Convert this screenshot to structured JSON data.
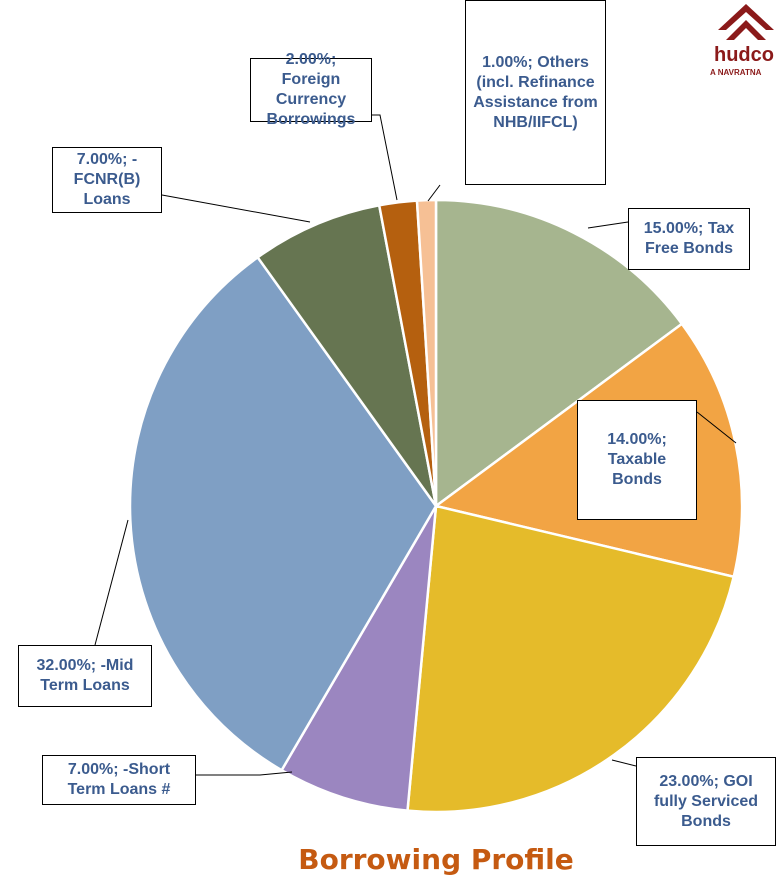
{
  "chart_data": {
    "type": "pie",
    "title": "Borrowing Profile",
    "values": [
      15,
      14,
      23,
      7,
      32,
      7,
      2,
      1
    ],
    "value_labels": [
      "15.00%; Tax Free Bonds",
      "14.00%; Taxable Bonds",
      "23.00%; GOI fully Serviced Bonds",
      "7.00%; -Short Term Loans #",
      "32.00%; -Mid Term Loans",
      "7.00%; -FCNR(B) Loans",
      "2.00%; Foreign Currency Borrowings",
      "1.00%; Others (incl. Refinance Assistance from NHB/IIFCL)"
    ],
    "colors": [
      "#a6b58f",
      "#f2a444",
      "#e5bb2a",
      "#9b86c0",
      "#7f9fc4",
      "#667551",
      "#b5600f",
      "#f6c095"
    ]
  },
  "logo": {
    "text": "hudco",
    "tagline": "A NAVRATNA"
  }
}
